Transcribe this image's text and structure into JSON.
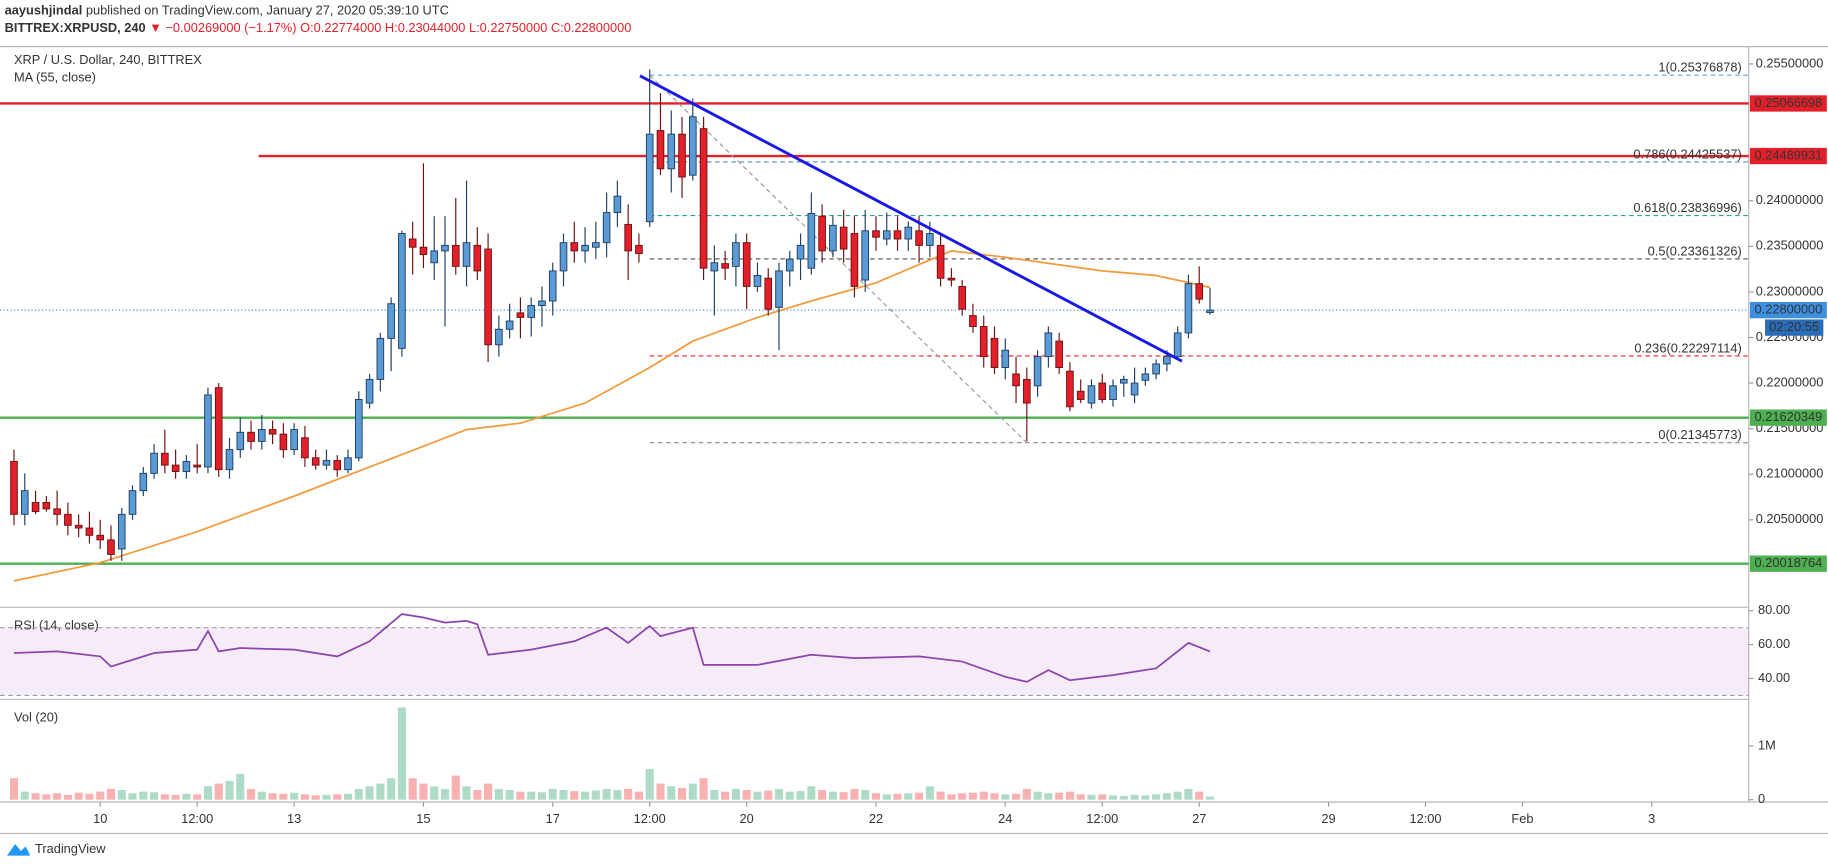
{
  "header": {
    "author": "aayushjindal",
    "published": "published on TradingView.com, January 27, 2020 05:39:10 UTC",
    "symbol": "BITTREX:XRPUSD, 240",
    "change": "▼ −0.00269000 (−1.17%)",
    "ohlc_text": "O:0.22774000 H:0.23044000 L:0.22750000 C:0.22800000"
  },
  "footer": {
    "brand": "TradingView"
  },
  "chart_data": {
    "type": "candlestick",
    "title": "XRP / U.S. Dollar, 240, BITTREX",
    "xlim": [
      -1.3,
      161
    ],
    "xticks": [
      {
        "value": 8,
        "label": "10"
      },
      {
        "value": 17,
        "label": "12:00"
      },
      {
        "value": 26,
        "label": "13"
      },
      {
        "value": 38,
        "label": "15"
      },
      {
        "value": 50,
        "label": "17"
      },
      {
        "value": 59,
        "label": "12:00"
      },
      {
        "value": 68,
        "label": "20"
      },
      {
        "value": 80,
        "label": "22"
      },
      {
        "value": 92,
        "label": "24"
      },
      {
        "value": 101,
        "label": "12:00"
      },
      {
        "value": 110,
        "label": "27"
      },
      {
        "value": 122,
        "label": "29"
      },
      {
        "value": 131,
        "label": "12:00"
      },
      {
        "value": 140,
        "label": "Feb"
      },
      {
        "value": 152,
        "label": "3"
      }
    ],
    "ylim": [
      0.1954,
      0.2569
    ],
    "yticks": [
      {
        "value": 0.205,
        "label": "0.20500000"
      },
      {
        "value": 0.21,
        "label": "0.21000000"
      },
      {
        "value": 0.215,
        "label": "0.21500000"
      },
      {
        "value": 0.22,
        "label": "0.22000000"
      },
      {
        "value": 0.225,
        "label": "0.22500000"
      },
      {
        "value": 0.23,
        "label": "0.23000000"
      },
      {
        "value": 0.235,
        "label": "0.23500000"
      },
      {
        "value": 0.24,
        "label": "0.24000000"
      },
      {
        "value": 0.255,
        "label": "0.25500000"
      }
    ],
    "up_color": "#5b9bd5",
    "down_color": "#e3202a",
    "ohlc": [
      [
        0.2114,
        0.2127,
        0.2044,
        0.2056
      ],
      [
        0.2056,
        0.2101,
        0.2044,
        0.2082
      ],
      [
        0.2069,
        0.2082,
        0.2056,
        0.2059
      ],
      [
        0.2069,
        0.2076,
        0.2059,
        0.2062
      ],
      [
        0.2062,
        0.2082,
        0.2044,
        0.2056
      ],
      [
        0.2056,
        0.2069,
        0.2033,
        0.2044
      ],
      [
        0.2044,
        0.2056,
        0.2031,
        0.2041
      ],
      [
        0.2041,
        0.2059,
        0.2024,
        0.2033
      ],
      [
        0.2033,
        0.205,
        0.2018,
        0.2028
      ],
      [
        0.2028,
        0.2044,
        0.2005,
        0.2012
      ],
      [
        0.2018,
        0.2063,
        0.2005,
        0.2056
      ],
      [
        0.2056,
        0.2088,
        0.205,
        0.2082
      ],
      [
        0.2082,
        0.2108,
        0.2076,
        0.2101
      ],
      [
        0.2101,
        0.2133,
        0.2095,
        0.2123
      ],
      [
        0.2123,
        0.2149,
        0.2101,
        0.211
      ],
      [
        0.211,
        0.2127,
        0.2095,
        0.2103
      ],
      [
        0.2103,
        0.2121,
        0.2095,
        0.2114
      ],
      [
        0.211,
        0.2133,
        0.2101,
        0.2108
      ],
      [
        0.2108,
        0.2195,
        0.2101,
        0.2187
      ],
      [
        0.2195,
        0.22,
        0.2097,
        0.2105
      ],
      [
        0.2105,
        0.214,
        0.2095,
        0.2127
      ],
      [
        0.2127,
        0.2162,
        0.2118,
        0.2146
      ],
      [
        0.2146,
        0.2159,
        0.2127,
        0.2136
      ],
      [
        0.2136,
        0.2165,
        0.2127,
        0.2149
      ],
      [
        0.2149,
        0.2159,
        0.2133,
        0.2144
      ],
      [
        0.2144,
        0.2156,
        0.2118,
        0.2127
      ],
      [
        0.2127,
        0.2156,
        0.2121,
        0.2149
      ],
      [
        0.214,
        0.2153,
        0.2108,
        0.2118
      ],
      [
        0.2118,
        0.2127,
        0.2105,
        0.211
      ],
      [
        0.211,
        0.2127,
        0.2105,
        0.2115
      ],
      [
        0.2115,
        0.2121,
        0.2097,
        0.2105
      ],
      [
        0.2105,
        0.2127,
        0.2101,
        0.2118
      ],
      [
        0.2118,
        0.2191,
        0.2114,
        0.2182
      ],
      [
        0.2178,
        0.221,
        0.2172,
        0.2204
      ],
      [
        0.2204,
        0.2255,
        0.2191,
        0.2249
      ],
      [
        0.2249,
        0.2294,
        0.2213,
        0.2287
      ],
      [
        0.2238,
        0.2367,
        0.2229,
        0.2364
      ],
      [
        0.2358,
        0.2377,
        0.2319,
        0.2349
      ],
      [
        0.2349,
        0.2441,
        0.2326,
        0.2341
      ],
      [
        0.2332,
        0.2383,
        0.2313,
        0.2345
      ],
      [
        0.2345,
        0.2383,
        0.2262,
        0.2351
      ],
      [
        0.2351,
        0.2403,
        0.2319,
        0.2328
      ],
      [
        0.2328,
        0.2422,
        0.2306,
        0.2354
      ],
      [
        0.2351,
        0.2371,
        0.2313,
        0.2323
      ],
      [
        0.2347,
        0.2364,
        0.2223,
        0.2242
      ],
      [
        0.2242,
        0.2274,
        0.2229,
        0.2259
      ],
      [
        0.2259,
        0.2287,
        0.2249,
        0.2268
      ],
      [
        0.2277,
        0.2294,
        0.2249,
        0.2272
      ],
      [
        0.2272,
        0.2294,
        0.2251,
        0.2285
      ],
      [
        0.2285,
        0.2306,
        0.2262,
        0.229
      ],
      [
        0.229,
        0.2332,
        0.2274,
        0.2323
      ],
      [
        0.2323,
        0.2364,
        0.2306,
        0.2354
      ],
      [
        0.2354,
        0.2377,
        0.2332,
        0.2345
      ],
      [
        0.2345,
        0.2371,
        0.2332,
        0.2351
      ],
      [
        0.2349,
        0.2377,
        0.2336,
        0.2354
      ],
      [
        0.2354,
        0.2409,
        0.2338,
        0.2387
      ],
      [
        0.2387,
        0.2422,
        0.2371,
        0.2405
      ],
      [
        0.2374,
        0.2396,
        0.2313,
        0.2345
      ],
      [
        0.2351,
        0.2364,
        0.2332,
        0.2342
      ],
      [
        0.2377,
        0.2544,
        0.2371,
        0.2473
      ],
      [
        0.2477,
        0.2518,
        0.2428,
        0.2435
      ],
      [
        0.2435,
        0.2499,
        0.2409,
        0.2473
      ],
      [
        0.2473,
        0.2492,
        0.2403,
        0.2426
      ],
      [
        0.2428,
        0.2512,
        0.2422,
        0.2492
      ],
      [
        0.2479,
        0.2492,
        0.2313,
        0.2326
      ],
      [
        0.2323,
        0.2351,
        0.2274,
        0.2332
      ],
      [
        0.2331,
        0.2345,
        0.2313,
        0.2326
      ],
      [
        0.2328,
        0.2364,
        0.2306,
        0.2354
      ],
      [
        0.2354,
        0.2364,
        0.2281,
        0.2306
      ],
      [
        0.2306,
        0.2332,
        0.23,
        0.2318
      ],
      [
        0.2315,
        0.2326,
        0.2274,
        0.2281
      ],
      [
        0.2283,
        0.2332,
        0.2236,
        0.2323
      ],
      [
        0.2323,
        0.2345,
        0.2306,
        0.2336
      ],
      [
        0.2336,
        0.2364,
        0.2313,
        0.2351
      ],
      [
        0.2326,
        0.2409,
        0.2319,
        0.2386
      ],
      [
        0.2383,
        0.2396,
        0.2332,
        0.2345
      ],
      [
        0.2345,
        0.2383,
        0.2338,
        0.2373
      ],
      [
        0.2371,
        0.239,
        0.2332,
        0.2347
      ],
      [
        0.2364,
        0.2383,
        0.2294,
        0.2306
      ],
      [
        0.2313,
        0.239,
        0.23,
        0.2367
      ],
      [
        0.2367,
        0.2383,
        0.2345,
        0.236
      ],
      [
        0.2358,
        0.2387,
        0.2351,
        0.2367
      ],
      [
        0.2367,
        0.2383,
        0.2345,
        0.2358
      ],
      [
        0.2358,
        0.2377,
        0.2345,
        0.2371
      ],
      [
        0.2367,
        0.2383,
        0.2332,
        0.2351
      ],
      [
        0.2351,
        0.2377,
        0.2338,
        0.2364
      ],
      [
        0.2351,
        0.2364,
        0.2306,
        0.2315
      ],
      [
        0.2315,
        0.2326,
        0.2306,
        0.2313
      ],
      [
        0.2306,
        0.2313,
        0.2274,
        0.2281
      ],
      [
        0.2274,
        0.2287,
        0.2255,
        0.2262
      ],
      [
        0.2262,
        0.2274,
        0.2217,
        0.2229
      ],
      [
        0.2249,
        0.2262,
        0.221,
        0.2217
      ],
      [
        0.2217,
        0.2249,
        0.2204,
        0.2236
      ],
      [
        0.221,
        0.2229,
        0.2178,
        0.2197
      ],
      [
        0.2204,
        0.2217,
        0.2136,
        0.2178
      ],
      [
        0.2197,
        0.2236,
        0.2185,
        0.2229
      ],
      [
        0.2229,
        0.2262,
        0.2217,
        0.2255
      ],
      [
        0.2246,
        0.2255,
        0.221,
        0.2217
      ],
      [
        0.2213,
        0.2223,
        0.2169,
        0.2174
      ],
      [
        0.2191,
        0.2204,
        0.2178,
        0.2182
      ],
      [
        0.2178,
        0.2204,
        0.2172,
        0.2197
      ],
      [
        0.22,
        0.221,
        0.2178,
        0.2182
      ],
      [
        0.2182,
        0.2204,
        0.2174,
        0.2197
      ],
      [
        0.22,
        0.2208,
        0.2185,
        0.2204
      ],
      [
        0.2187,
        0.2217,
        0.2178,
        0.22
      ],
      [
        0.2203,
        0.2217,
        0.2197,
        0.221
      ],
      [
        0.221,
        0.2226,
        0.2204,
        0.2221
      ],
      [
        0.2221,
        0.2236,
        0.2213,
        0.2229
      ],
      [
        0.2229,
        0.2262,
        0.2226,
        0.2255
      ],
      [
        0.2255,
        0.2319,
        0.2249,
        0.2309
      ],
      [
        0.2309,
        0.2328,
        0.2287,
        0.2292
      ],
      [
        0.22774,
        0.23044,
        0.2275,
        0.228
      ]
    ],
    "ma": {
      "name": "MA (55, close)",
      "color": "#f39a3a",
      "x": [
        0,
        8,
        17,
        26,
        35,
        42,
        47,
        53,
        59,
        63,
        69,
        74,
        80,
        87,
        92,
        101,
        106,
        111
      ],
      "values": [
        0.1983,
        0.2003,
        0.2037,
        0.2076,
        0.2117,
        0.2149,
        0.2156,
        0.2178,
        0.2217,
        0.2246,
        0.2272,
        0.229,
        0.231,
        0.2345,
        0.2338,
        0.2323,
        0.2318,
        0.2305
      ]
    },
    "levels": [
      {
        "value": 0.25066698,
        "label": "0.25066698",
        "color": "#e3202a",
        "x_start": -1.3
      },
      {
        "value": 0.24489931,
        "label": "0.24489931",
        "color": "#e3202a",
        "x_start": 22.7
      },
      {
        "value": 0.21620349,
        "label": "0.21620349",
        "color": "#4caf50",
        "x_start": -1.3
      },
      {
        "value": 0.20018764,
        "label": "0.20018764",
        "color": "#4caf50",
        "x_start": -1.3
      }
    ],
    "trendline": {
      "x": [
        58.1,
        108.4
      ],
      "values": [
        0.2537,
        0.2224
      ],
      "color": "#1a1ae6"
    },
    "fib": {
      "x": [
        59,
        94
      ],
      "levels": [
        {
          "value": 0.25376878,
          "label": "1(0.25376878)",
          "color": "#5aa9d6"
        },
        {
          "value": 0.24425537,
          "label": "0.786(0.24425537)",
          "color": "#4a90b8"
        },
        {
          "value": 0.23836996,
          "label": "0.618(0.23836996)",
          "color": "#26a69a"
        },
        {
          "value": 0.23361326,
          "label": "0.5(0.23361326)",
          "color": "#555555"
        },
        {
          "value": 0.22297114,
          "label": "0.236(0.22297114)",
          "color": "#e3202a"
        },
        {
          "value": 0.21345773,
          "label": "0(0.21345773)",
          "color": "#888888"
        }
      ]
    },
    "last_price": {
      "value": 0.228,
      "label": "0.22800000",
      "countdown": "02:20:55",
      "color": "#3d8fe0"
    },
    "rsi": {
      "name": "RSI (14, close)",
      "color": "#8e44ad",
      "x": [
        0,
        4,
        8,
        9,
        13,
        17,
        18,
        19,
        21,
        26,
        30,
        33,
        36,
        38,
        40,
        42,
        43,
        44,
        48,
        52,
        55,
        57,
        59,
        60,
        63,
        64,
        69,
        74,
        78,
        84,
        88,
        92,
        94,
        96,
        98,
        102,
        106,
        109,
        111
      ],
      "values": [
        55,
        56,
        53,
        47,
        55,
        57,
        68,
        56,
        58,
        57,
        53,
        62,
        78,
        76,
        73,
        74,
        72,
        54,
        57,
        62,
        70,
        61,
        71,
        65,
        70,
        48,
        48,
        54,
        52,
        53,
        50,
        41,
        38,
        45,
        39,
        42,
        46,
        61,
        56
      ],
      "ylim": [
        29,
        82
      ],
      "yticks": [
        {
          "value": 80,
          "label": "80.00"
        },
        {
          "value": 60,
          "label": "60.00"
        },
        {
          "value": 40,
          "label": "40.00"
        }
      ],
      "bands": [
        30,
        70
      ]
    },
    "volume": {
      "name": "Vol (20)",
      "values": [
        400000,
        150000,
        120000,
        100000,
        120000,
        90000,
        130000,
        110000,
        150000,
        200000,
        180000,
        120000,
        150000,
        140000,
        100000,
        90000,
        110000,
        100000,
        250000,
        300000,
        350000,
        480000,
        200000,
        150000,
        120000,
        110000,
        130000,
        100000,
        80000,
        90000,
        100000,
        110000,
        200000,
        250000,
        300000,
        400000,
        1720000,
        400000,
        300000,
        250000,
        200000,
        450000,
        250000,
        180000,
        300000,
        200000,
        180000,
        150000,
        150000,
        140000,
        200000,
        180000,
        160000,
        150000,
        170000,
        200000,
        180000,
        200000,
        150000,
        570000,
        300000,
        250000,
        220000,
        300000,
        400000,
        180000,
        150000,
        200000,
        180000,
        150000,
        170000,
        200000,
        150000,
        160000,
        250000,
        180000,
        150000,
        140000,
        200000,
        180000,
        120000,
        100000,
        110000,
        120000,
        130000,
        250000,
        150000,
        100000,
        120000,
        130000,
        150000,
        120000,
        100000,
        110000,
        200000,
        150000,
        120000,
        130000,
        150000,
        100000,
        90000,
        100000,
        80000,
        70000,
        90000,
        80000,
        100000,
        120000,
        150000,
        200000,
        150000,
        60000
      ],
      "ylim": [
        0,
        1760000
      ],
      "yticks": [
        {
          "value": 1000000,
          "label": "1M"
        },
        0
      ]
    }
  }
}
